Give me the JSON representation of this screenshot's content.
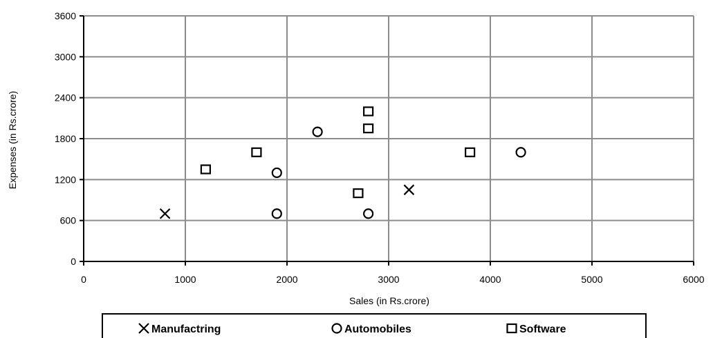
{
  "chart_data": {
    "type": "scatter",
    "title": "",
    "xlabel": "Sales (in Rs.crore)",
    "ylabel": "Expenses (in Rs.crore)",
    "xlim": [
      0,
      6000
    ],
    "ylim": [
      0,
      3600
    ],
    "x_ticks": [
      "0",
      "1000",
      "2000",
      "3000",
      "4000",
      "5000",
      "6000"
    ],
    "y_ticks": [
      "0",
      "600",
      "1200",
      "1800",
      "2400",
      "3000",
      "3600"
    ],
    "grid": true,
    "legend_position": "bottom",
    "series": [
      {
        "name": "Manufactring",
        "marker": "cross",
        "points": [
          {
            "x": 800,
            "y": 700
          },
          {
            "x": 3200,
            "y": 1050
          }
        ]
      },
      {
        "name": "Automobiles",
        "marker": "circle",
        "points": [
          {
            "x": 1900,
            "y": 700
          },
          {
            "x": 1900,
            "y": 1300
          },
          {
            "x": 2300,
            "y": 1900
          },
          {
            "x": 2800,
            "y": 700
          },
          {
            "x": 4300,
            "y": 1600
          }
        ]
      },
      {
        "name": "Software",
        "marker": "square",
        "points": [
          {
            "x": 1200,
            "y": 1350
          },
          {
            "x": 1700,
            "y": 1600
          },
          {
            "x": 2700,
            "y": 1000
          },
          {
            "x": 2800,
            "y": 1950
          },
          {
            "x": 2800,
            "y": 2200
          },
          {
            "x": 3800,
            "y": 1600
          }
        ]
      }
    ]
  }
}
